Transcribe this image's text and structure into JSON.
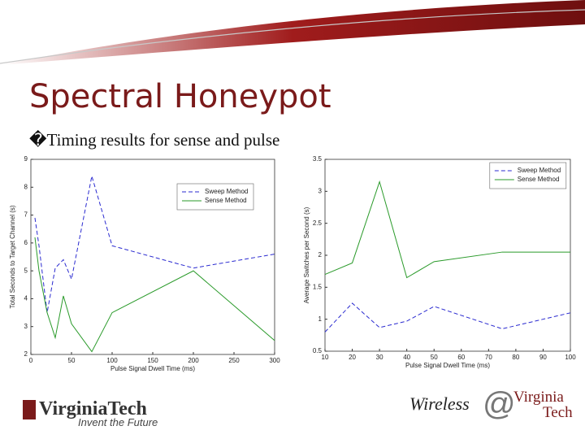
{
  "slide": {
    "title": "Spectral Honeypot",
    "bullet": "�Timing results for sense and pulse"
  },
  "footer": {
    "left_logo": "VirginiaTech",
    "left_tagline": "Invent the Future",
    "right_word": "Wireless",
    "right_at": "@",
    "right_logo_1": "Virginia",
    "right_logo_2": "Tech"
  },
  "chart_data": [
    {
      "type": "line",
      "xlabel": "Pulse Signal Dwell Time (ms)",
      "ylabel": "Total Seconds to Target Channel (s)",
      "x": [
        5,
        10,
        20,
        30,
        40,
        50,
        75,
        100,
        200,
        300
      ],
      "series": [
        {
          "name": "Sweep Method",
          "color": "#2a2ad0",
          "linestyle": "dashed",
          "values": [
            6.9,
            5.9,
            3.5,
            5.1,
            5.4,
            4.7,
            8.4,
            5.9,
            5.1,
            5.6
          ]
        },
        {
          "name": "Sense Method",
          "color": "#2a9a2a",
          "linestyle": "solid",
          "values": [
            6.2,
            5.0,
            3.5,
            2.6,
            4.1,
            3.1,
            2.1,
            3.5,
            5.0,
            2.5
          ]
        }
      ],
      "xlim": [
        0,
        300
      ],
      "xticks": [
        0,
        50,
        100,
        150,
        200,
        250,
        300
      ],
      "ylim": [
        2,
        9
      ],
      "yticks": [
        2,
        3,
        4,
        5,
        6,
        7,
        8,
        9
      ],
      "legend": "upper right"
    },
    {
      "type": "line",
      "xlabel": "Pulse Signal Dwell Time (ms)",
      "ylabel": "Average Switches per Second (s)",
      "x": [
        10,
        20,
        30,
        40,
        50,
        75,
        100
      ],
      "series": [
        {
          "name": "Sweep Method",
          "color": "#2a2ad0",
          "linestyle": "dashed",
          "values": [
            0.8,
            1.25,
            0.87,
            0.97,
            1.2,
            0.85,
            1.1
          ]
        },
        {
          "name": "Sense Method",
          "color": "#2a9a2a",
          "linestyle": "solid",
          "values": [
            1.7,
            1.88,
            3.15,
            1.65,
            1.9,
            2.05,
            2.05
          ]
        }
      ],
      "xlim": [
        10,
        100
      ],
      "xticks": [
        10,
        20,
        30,
        40,
        50,
        60,
        70,
        80,
        90,
        100
      ],
      "ylim": [
        0.5,
        3.5
      ],
      "yticks": [
        0.5,
        1,
        1.5,
        2,
        2.5,
        3,
        3.5
      ],
      "legend": "upper right"
    }
  ]
}
